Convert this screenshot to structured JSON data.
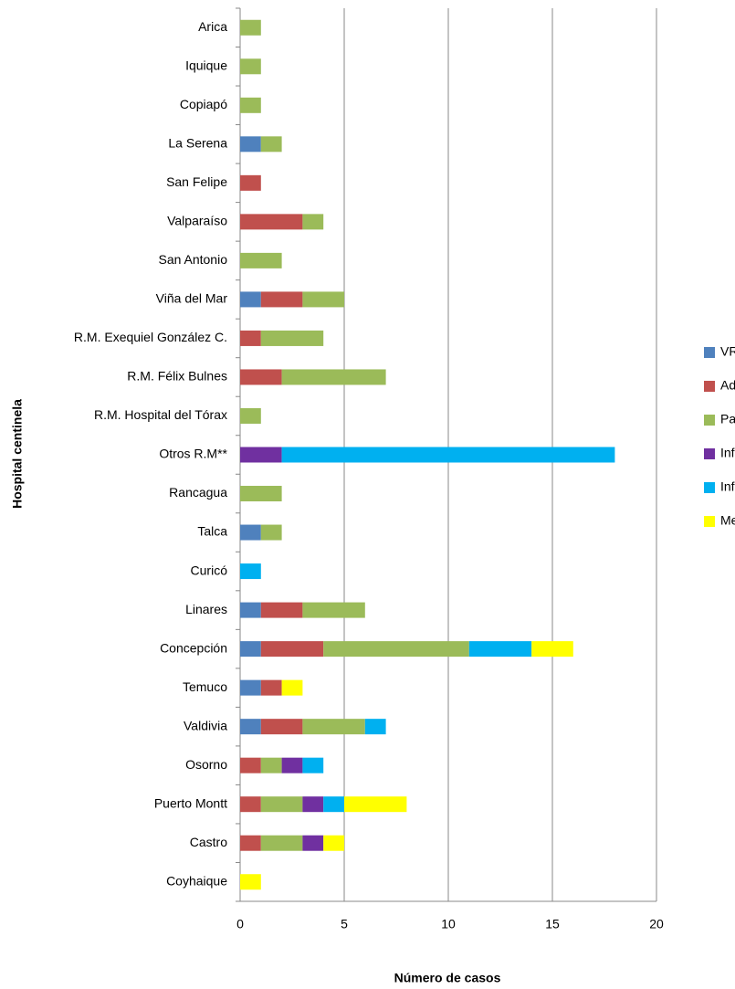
{
  "chart_data": {
    "type": "stacked-barh",
    "x_label": "Número de casos",
    "y_label": "Hospital centinela",
    "categories": [
      "Arica",
      "Iquique",
      "Copiapó",
      "La Serena",
      "San Felipe",
      "Valparaíso",
      "San Antonio",
      "Viña del Mar",
      "R.M. Exequiel González C.",
      "R.M. Félix Bulnes",
      "R.M. Hospital del Tórax",
      "Otros R.M**",
      "Rancagua",
      "Talca",
      "Curicó",
      "Linares",
      "Concepción",
      "Temuco",
      "Valdivia",
      "Osorno",
      "Puerto Montt",
      "Castro",
      "Coyhaique"
    ],
    "series": [
      {
        "name": "VRS",
        "color": "#4f81bd",
        "values": [
          0,
          0,
          0,
          1,
          0,
          0,
          0,
          1,
          0,
          0,
          0,
          0,
          0,
          1,
          0,
          1,
          1,
          1,
          1,
          0,
          0,
          0,
          0
        ]
      },
      {
        "name": "Ad",
        "color": "#c0504d",
        "values": [
          0,
          0,
          0,
          0,
          1,
          3,
          0,
          2,
          1,
          2,
          0,
          0,
          0,
          0,
          0,
          2,
          3,
          1,
          2,
          1,
          1,
          1,
          0
        ]
      },
      {
        "name": "Para",
        "color": "#9bbb59",
        "values": [
          1,
          1,
          1,
          1,
          0,
          1,
          2,
          2,
          3,
          5,
          1,
          0,
          2,
          1,
          0,
          3,
          7,
          0,
          3,
          1,
          2,
          2,
          0
        ]
      },
      {
        "name": "Inf A",
        "color": "#7030a0",
        "values": [
          0,
          0,
          0,
          0,
          0,
          0,
          0,
          0,
          0,
          0,
          0,
          2,
          0,
          0,
          0,
          0,
          0,
          0,
          0,
          1,
          1,
          1,
          0
        ]
      },
      {
        "name": "Inf B",
        "color": "#00b0f0",
        "values": [
          0,
          0,
          0,
          0,
          0,
          0,
          0,
          0,
          0,
          0,
          0,
          16,
          0,
          0,
          1,
          0,
          3,
          0,
          1,
          1,
          1,
          0,
          0
        ]
      },
      {
        "name": "Meta",
        "color": "#ffff00",
        "values": [
          0,
          0,
          0,
          0,
          0,
          0,
          0,
          0,
          0,
          0,
          0,
          0,
          0,
          0,
          0,
          0,
          2,
          1,
          0,
          0,
          3,
          1,
          1
        ]
      }
    ],
    "xlim": [
      0,
      20
    ],
    "xticks": [
      0,
      5,
      10,
      15,
      20
    ],
    "grid": true,
    "legend": "right"
  }
}
